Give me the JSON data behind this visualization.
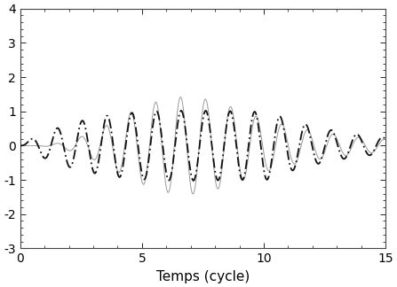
{
  "title": "",
  "xlabel": "Temps (cycle)",
  "ylabel": "",
  "xlim": [
    0,
    15
  ],
  "ylim": [
    -3,
    4
  ],
  "xticks": [
    0,
    5,
    10,
    15
  ],
  "yticks": [
    -3,
    -2,
    -1,
    0,
    1,
    2,
    3,
    4
  ],
  "background_color": "#ffffff",
  "thin_line_color": "#999999",
  "thick_line_color": "#111111",
  "xlabel_fontsize": 11,
  "n_points": 4000,
  "t_max": 15.0,
  "n_cycles": 10,
  "carrier_freq": 1.0,
  "system_freq": 0.95,
  "system_damping": 0.05
}
